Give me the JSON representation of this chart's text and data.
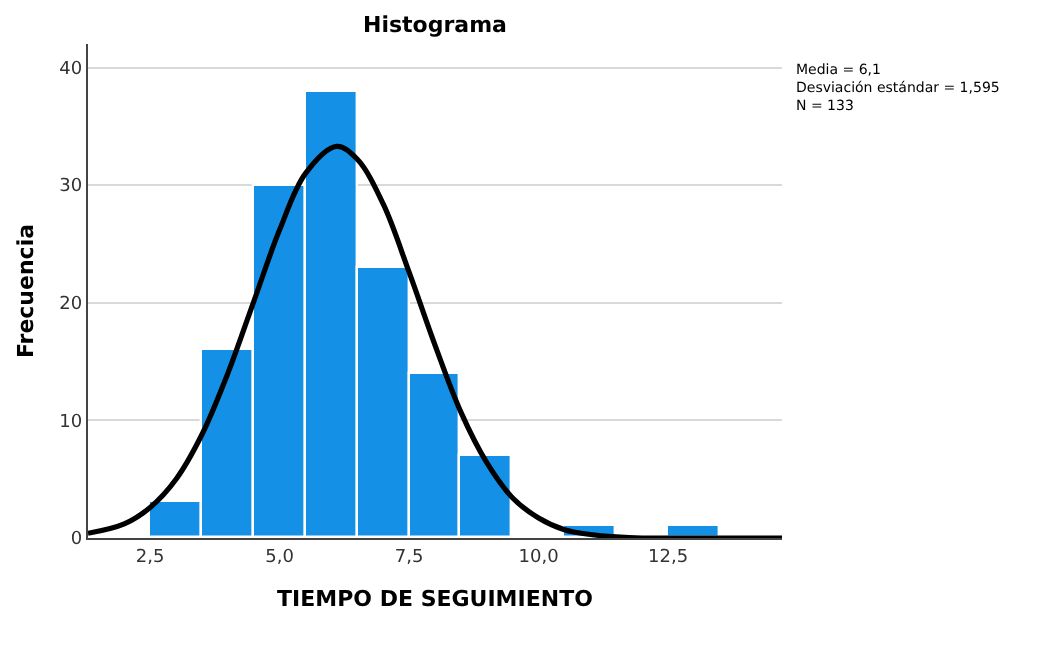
{
  "chart_data": {
    "type": "histogram",
    "title": "Histograma",
    "xlabel": "TIEMPO DE SEGUIMIENTO",
    "ylabel": "Frecuencia",
    "bins": [
      2.5,
      3.5,
      4.5,
      5.5,
      6.5,
      7.5,
      8.5,
      9.5,
      10.5,
      11.5,
      12.5,
      13.5
    ],
    "values": [
      3,
      16,
      30,
      38,
      23,
      14,
      7,
      0,
      1,
      0,
      1
    ],
    "color": "#1490e6",
    "series": [
      {
        "type": "line",
        "color": "#000000",
        "x": [
          1.3,
          2,
          2.5,
          3,
          3.5,
          4,
          4.5,
          5,
          5.5,
          6.1,
          6.5,
          7,
          7.5,
          8,
          8.5,
          9,
          9.5,
          10,
          10.5,
          11,
          11.5,
          12,
          13,
          14.7
        ],
        "values": [
          0.4,
          1.2,
          2.6,
          5.0,
          8.8,
          14.0,
          20.1,
          26.2,
          31.0,
          33.3,
          32.2,
          28.4,
          22.6,
          16.4,
          10.7,
          6.4,
          3.4,
          1.7,
          0.7,
          0.3,
          0.1,
          0.0,
          0.0,
          0.0
        ]
      }
    ],
    "xlim": [
      1.3,
      14.7
    ],
    "ylim": [
      0,
      42
    ],
    "xticks": [
      {
        "value": 2.5,
        "label": "2,5"
      },
      {
        "value": 5.0,
        "label": "5,0"
      },
      {
        "value": 7.5,
        "label": "7,5"
      },
      {
        "value": 10.0,
        "label": "10,0"
      },
      {
        "value": 12.5,
        "label": "12,5"
      }
    ],
    "yticks": [
      0,
      10,
      20,
      30,
      40
    ],
    "grid": "y",
    "annotations": [
      "Media = 6,1\nDesviación estándar = 1,595\nN = 133"
    ]
  }
}
